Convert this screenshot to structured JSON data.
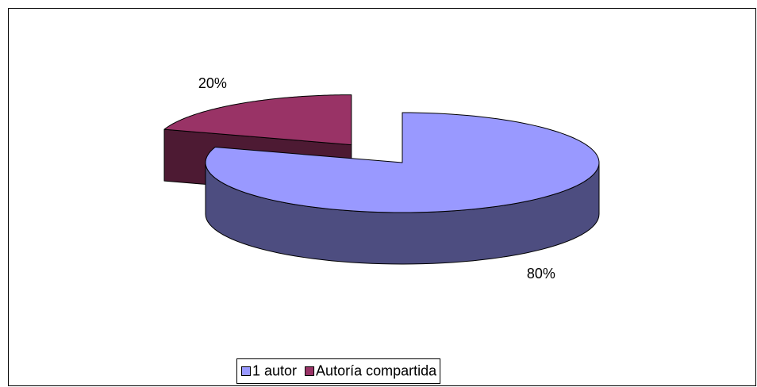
{
  "chart_data": {
    "type": "pie3d",
    "categories": [
      "1 autor",
      "Autoría compartida"
    ],
    "values": [
      80,
      20
    ],
    "value_labels": [
      "80%",
      "20%"
    ],
    "series": [
      {
        "name": "1 autor",
        "color": "#9999ff"
      },
      {
        "name": "Autoría compartida",
        "color": "#993366"
      }
    ],
    "legend": "bottom"
  }
}
